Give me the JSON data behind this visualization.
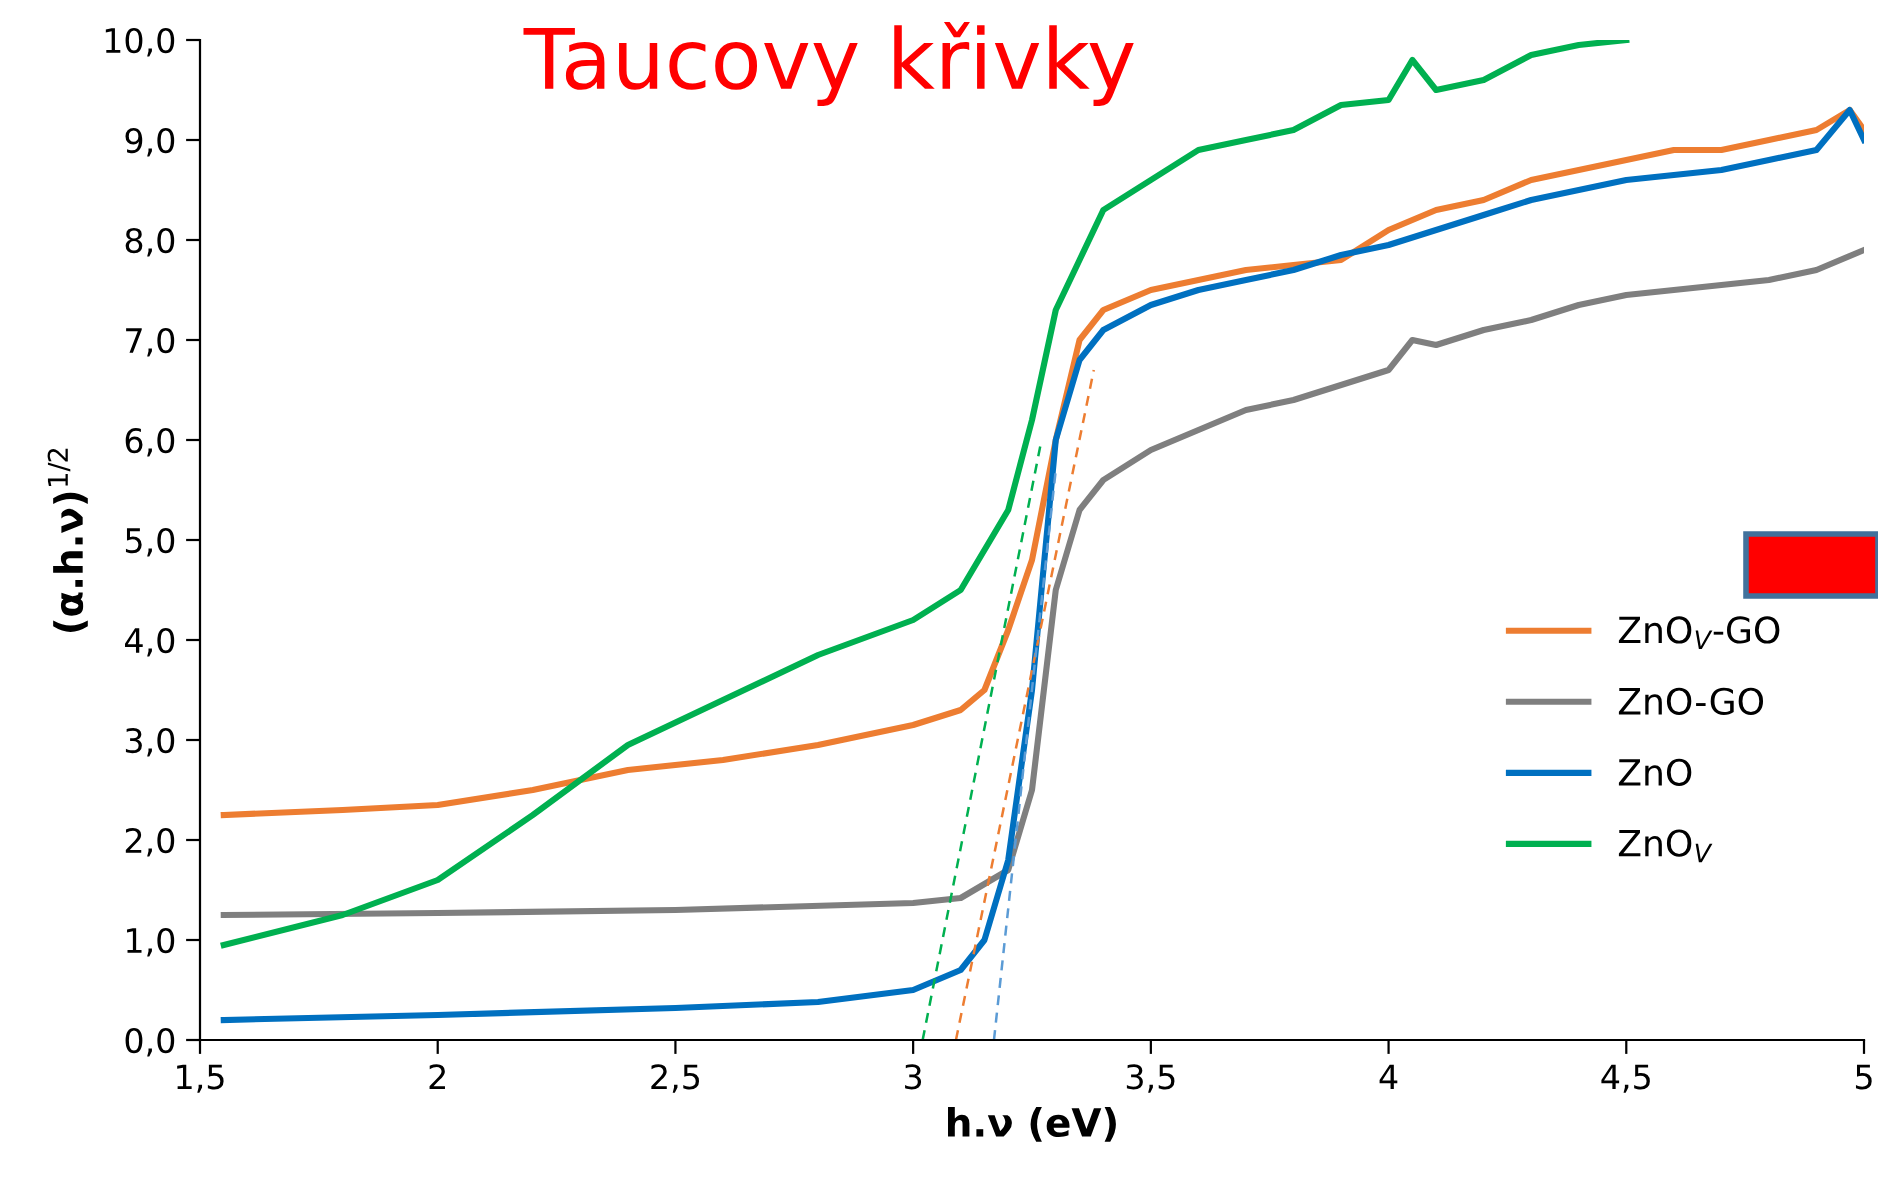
{
  "chart_data": {
    "type": "line",
    "title": "Taucovy křivky",
    "xlabel": "h.ν (eV)",
    "ylabel": "(α.h.ν)$^{1/2}$",
    "xlim": [
      1.5,
      5
    ],
    "ylim": [
      0,
      10
    ],
    "xticks": [
      {
        "value": 1.5,
        "label": "1,5"
      },
      2,
      {
        "value": 2.5,
        "label": "2,5"
      },
      3,
      {
        "value": 3.5,
        "label": "3,5"
      },
      4,
      {
        "value": 4.5,
        "label": "4,5"
      },
      5
    ],
    "yticks": [
      {
        "value": 0,
        "label": "0,0"
      },
      {
        "value": 1,
        "label": "1,0"
      },
      {
        "value": 2,
        "label": "2,0"
      },
      {
        "value": 3,
        "label": "3,0"
      },
      {
        "value": 4,
        "label": "4,0"
      },
      {
        "value": 5,
        "label": "5,0"
      },
      {
        "value": 6,
        "label": "6,0"
      },
      {
        "value": 7,
        "label": "7,0"
      },
      {
        "value": 8,
        "label": "8,0"
      },
      {
        "value": 9,
        "label": "9,0"
      },
      {
        "value": 10,
        "label": "10,0"
      }
    ],
    "grid": false,
    "legend": "right",
    "marker": "none",
    "line_style": "solid",
    "series": [
      {
        "name": "ZnO$_{V}$-GO",
        "color": "#ed7d31",
        "x": [
          1.55,
          1.8,
          2.0,
          2.2,
          2.4,
          2.6,
          2.8,
          3.0,
          3.1,
          3.15,
          3.2,
          3.25,
          3.3,
          3.35,
          3.4,
          3.5,
          3.6,
          3.7,
          3.8,
          3.9,
          4.0,
          4.1,
          4.2,
          4.3,
          4.4,
          4.5,
          4.6,
          4.7,
          4.8,
          4.9,
          4.97,
          5.0
        ],
        "values": [
          2.25,
          2.3,
          2.35,
          2.5,
          2.7,
          2.8,
          2.95,
          3.15,
          3.3,
          3.5,
          4.1,
          4.8,
          6.0,
          7.0,
          7.3,
          7.5,
          7.6,
          7.7,
          7.75,
          7.8,
          8.1,
          8.3,
          8.4,
          8.6,
          8.7,
          8.8,
          8.9,
          8.9,
          9.0,
          9.1,
          9.3,
          9.1
        ]
      },
      {
        "name": "ZnO-GO",
        "color": "#7f7f7f",
        "x": [
          1.55,
          2.0,
          2.5,
          3.0,
          3.1,
          3.2,
          3.25,
          3.3,
          3.35,
          3.4,
          3.5,
          3.6,
          3.7,
          3.8,
          3.9,
          4.0,
          4.05,
          4.1,
          4.2,
          4.3,
          4.4,
          4.5,
          4.6,
          4.7,
          4.8,
          4.9,
          5.0
        ],
        "values": [
          1.25,
          1.27,
          1.3,
          1.37,
          1.42,
          1.7,
          2.5,
          4.5,
          5.3,
          5.6,
          5.9,
          6.1,
          6.3,
          6.4,
          6.55,
          6.7,
          7.0,
          6.95,
          7.1,
          7.2,
          7.35,
          7.45,
          7.5,
          7.55,
          7.6,
          7.7,
          7.9
        ]
      },
      {
        "name": "ZnO",
        "color": "#0070c0",
        "x": [
          1.55,
          2.0,
          2.5,
          2.8,
          3.0,
          3.1,
          3.15,
          3.2,
          3.25,
          3.3,
          3.35,
          3.4,
          3.5,
          3.6,
          3.7,
          3.8,
          3.9,
          4.0,
          4.1,
          4.2,
          4.3,
          4.4,
          4.5,
          4.6,
          4.7,
          4.8,
          4.9,
          4.97,
          5.0
        ],
        "values": [
          0.2,
          0.25,
          0.32,
          0.38,
          0.5,
          0.7,
          1.0,
          1.8,
          3.5,
          6.0,
          6.8,
          7.1,
          7.35,
          7.5,
          7.6,
          7.7,
          7.85,
          7.95,
          8.1,
          8.25,
          8.4,
          8.5,
          8.6,
          8.65,
          8.7,
          8.8,
          8.9,
          9.3,
          9.0
        ]
      },
      {
        "name": "ZnO$_{V}$",
        "color": "#00b050",
        "x": [
          1.55,
          1.8,
          2.0,
          2.2,
          2.4,
          2.6,
          2.8,
          3.0,
          3.1,
          3.2,
          3.25,
          3.3,
          3.35,
          3.4,
          3.5,
          3.6,
          3.7,
          3.8,
          3.9,
          4.0,
          4.05,
          4.1,
          4.2,
          4.3,
          4.4,
          4.5
        ],
        "values": [
          0.95,
          1.25,
          1.6,
          2.25,
          2.95,
          3.4,
          3.85,
          4.2,
          4.5,
          5.3,
          6.2,
          7.3,
          7.8,
          8.3,
          8.6,
          8.9,
          9.0,
          9.1,
          9.35,
          9.4,
          9.8,
          9.5,
          9.6,
          9.85,
          9.95,
          10.0
        ]
      },
      {
        "color": "#00b050",
        "line_style": "dashed",
        "x": [
          3.02,
          3.27
        ],
        "values": [
          0,
          6.0
        ]
      },
      {
        "color": "#ed7d31",
        "line_style": "dashed",
        "x": [
          3.09,
          3.38
        ],
        "values": [
          0,
          6.7
        ]
      },
      {
        "color": "#5b9bd5",
        "line_style": "dashed",
        "x": [
          3.17,
          3.3
        ],
        "values": [
          0,
          5.7
        ]
      }
    ]
  }
}
